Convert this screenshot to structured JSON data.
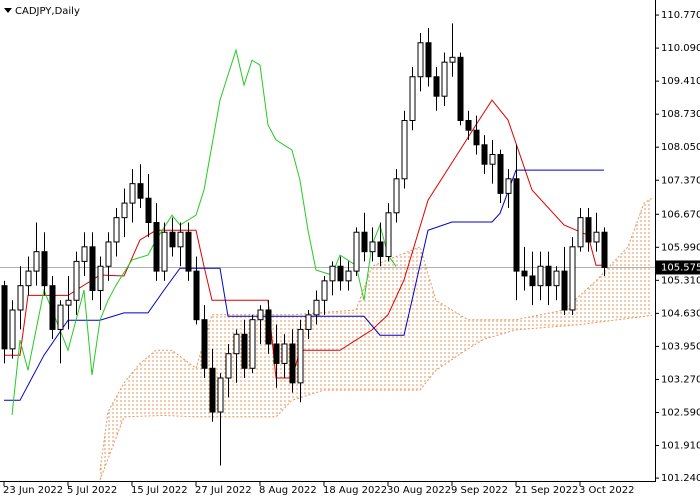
{
  "chart_data": {
    "type": "candlestick",
    "title": "CADJPY,Daily",
    "ylim": [
      101.18,
      111.08
    ],
    "xlim": [
      -0.5,
      81.5
    ],
    "yticks": [
      {
        "value": 110.77,
        "label": "110.770"
      },
      {
        "value": 110.09,
        "label": "110.090"
      },
      {
        "value": 109.41,
        "label": "109.410"
      },
      {
        "value": 108.73,
        "label": "108.730"
      },
      {
        "value": 108.05,
        "label": "108.050"
      },
      {
        "value": 107.37,
        "label": "107.370"
      },
      {
        "value": 106.67,
        "label": "106.670"
      },
      {
        "value": 105.99,
        "label": "105.990"
      },
      {
        "value": 105.31,
        "label": "105.310"
      },
      {
        "value": 104.63,
        "label": "104.630"
      },
      {
        "value": 103.95,
        "label": "103.950"
      },
      {
        "value": 103.27,
        "label": "103.270"
      },
      {
        "value": 102.59,
        "label": "102.590"
      },
      {
        "value": 101.91,
        "label": "101.910"
      },
      {
        "value": 101.24,
        "label": "101.240"
      }
    ],
    "xticks": [
      {
        "value": 0,
        "label": "23 Jun 2022"
      },
      {
        "value": 8,
        "label": "5 Jul 2022"
      },
      {
        "value": 16,
        "label": "15 Jul 2022"
      },
      {
        "value": 24,
        "label": "27 Jul 2022"
      },
      {
        "value": 32,
        "label": "8 Aug 2022"
      },
      {
        "value": 40,
        "label": "18 Aug 2022"
      },
      {
        "value": 48,
        "label": "30 Aug 2022"
      },
      {
        "value": 56,
        "label": "9 Sep 2022"
      },
      {
        "value": 64,
        "label": "21 Sep 2022"
      },
      {
        "value": 72,
        "label": "3 Oct 2022"
      }
    ],
    "last_price": {
      "value": 105.575,
      "label": "105.575"
    },
    "bull_color": "#ffffff",
    "bear_color": "#000000",
    "ohlc": [
      [
        105.2,
        105.3,
        103.6,
        103.9
      ],
      [
        103.9,
        104.9,
        103.7,
        104.7
      ],
      [
        104.7,
        105.6,
        104.3,
        105.2
      ],
      [
        105.2,
        105.8,
        105.0,
        105.5
      ],
      [
        105.5,
        106.5,
        105.2,
        105.9
      ],
      [
        105.9,
        106.3,
        105.0,
        105.2
      ],
      [
        105.2,
        105.4,
        104.1,
        104.3
      ],
      [
        104.3,
        104.9,
        103.6,
        104.8
      ],
      [
        104.8,
        105.4,
        104.3,
        104.9
      ],
      [
        104.9,
        105.9,
        104.6,
        105.7
      ],
      [
        105.7,
        106.3,
        105.4,
        106.0
      ],
      [
        106.0,
        106.3,
        104.9,
        105.1
      ],
      [
        105.1,
        105.8,
        104.7,
        105.6
      ],
      [
        105.6,
        106.3,
        105.3,
        106.1
      ],
      [
        106.1,
        106.8,
        105.8,
        106.6
      ],
      [
        106.6,
        107.2,
        106.2,
        106.9
      ],
      [
        106.9,
        107.6,
        106.5,
        107.3
      ],
      [
        107.3,
        107.7,
        106.8,
        107.0
      ],
      [
        107.0,
        107.5,
        106.2,
        106.5
      ],
      [
        106.5,
        106.9,
        105.3,
        105.5
      ],
      [
        105.5,
        106.5,
        105.3,
        106.3
      ],
      [
        106.3,
        106.6,
        105.8,
        106.0
      ],
      [
        106.0,
        106.5,
        105.6,
        106.3
      ],
      [
        106.3,
        106.5,
        105.3,
        105.5
      ],
      [
        105.5,
        105.8,
        104.4,
        104.5
      ],
      [
        104.5,
        104.8,
        103.3,
        103.5
      ],
      [
        103.5,
        103.9,
        102.4,
        102.6
      ],
      [
        102.6,
        103.4,
        101.5,
        103.3
      ],
      [
        103.3,
        104.0,
        102.9,
        103.8
      ],
      [
        103.8,
        104.3,
        103.2,
        104.2
      ],
      [
        104.2,
        104.5,
        103.3,
        103.5
      ],
      [
        103.5,
        104.6,
        103.4,
        104.5
      ],
      [
        104.5,
        104.8,
        104.0,
        104.7
      ],
      [
        104.7,
        104.9,
        103.8,
        104.0
      ],
      [
        104.0,
        104.4,
        103.1,
        103.6
      ],
      [
        103.6,
        104.2,
        103.3,
        104.0
      ],
      [
        104.0,
        104.3,
        103.0,
        103.2
      ],
      [
        103.2,
        104.5,
        102.8,
        104.3
      ],
      [
        104.3,
        104.7,
        104.1,
        104.6
      ],
      [
        104.6,
        105.1,
        104.4,
        104.9
      ],
      [
        104.9,
        105.4,
        104.6,
        105.3
      ],
      [
        105.3,
        105.7,
        105.0,
        105.6
      ],
      [
        105.6,
        105.8,
        105.1,
        105.3
      ],
      [
        105.3,
        105.7,
        105.1,
        105.5
      ],
      [
        105.5,
        106.4,
        105.4,
        106.3
      ],
      [
        106.3,
        106.7,
        105.7,
        105.9
      ],
      [
        105.9,
        106.4,
        105.7,
        106.1
      ],
      [
        106.1,
        106.5,
        105.6,
        105.8
      ],
      [
        105.8,
        106.9,
        105.7,
        106.7
      ],
      [
        106.7,
        107.6,
        106.5,
        107.4
      ],
      [
        107.4,
        108.8,
        107.2,
        108.6
      ],
      [
        108.6,
        109.7,
        108.4,
        109.5
      ],
      [
        109.5,
        110.4,
        109.2,
        110.2
      ],
      [
        110.2,
        110.5,
        109.3,
        109.5
      ],
      [
        109.5,
        109.7,
        108.8,
        109.1
      ],
      [
        109.1,
        110.0,
        108.9,
        109.8
      ],
      [
        109.8,
        110.6,
        109.5,
        109.9
      ],
      [
        109.9,
        110.0,
        108.5,
        108.6
      ],
      [
        108.6,
        108.8,
        108.2,
        108.4
      ],
      [
        108.4,
        108.7,
        107.9,
        108.1
      ],
      [
        108.1,
        108.3,
        107.5,
        107.7
      ],
      [
        107.7,
        108.2,
        107.3,
        107.9
      ],
      [
        107.9,
        108.0,
        106.9,
        107.1
      ],
      [
        107.1,
        107.6,
        106.8,
        107.4
      ],
      [
        107.4,
        108.1,
        104.9,
        105.5
      ],
      [
        105.5,
        106.0,
        105.1,
        105.4
      ],
      [
        105.4,
        105.9,
        104.8,
        105.2
      ],
      [
        105.2,
        105.9,
        104.9,
        105.6
      ],
      [
        105.6,
        105.9,
        104.8,
        105.2
      ],
      [
        105.2,
        105.6,
        104.9,
        105.5
      ],
      [
        105.5,
        106.0,
        104.6,
        104.7
      ],
      [
        104.7,
        106.2,
        104.6,
        106.0
      ],
      [
        106.0,
        106.8,
        105.9,
        106.6
      ],
      [
        106.6,
        106.8,
        105.9,
        106.1
      ],
      [
        106.1,
        106.7,
        105.9,
        106.3
      ],
      [
        106.3,
        106.4,
        105.4,
        105.575
      ]
    ],
    "lines": [
      {
        "color": "#e00000",
        "x": [
          0,
          2,
          3,
          8,
          12,
          15,
          17,
          19,
          22,
          24,
          25,
          26,
          33,
          34,
          36,
          37,
          42,
          44,
          46,
          48,
          50,
          53,
          57,
          59,
          61,
          63,
          66,
          70,
          73,
          74,
          75
        ],
        "values": [
          103.77,
          103.77,
          105.0,
          105.0,
          105.42,
          105.4,
          106.14,
          106.34,
          106.34,
          106.34,
          105.6,
          104.9,
          104.9,
          103.3,
          103.3,
          103.87,
          103.87,
          104.08,
          104.29,
          104.6,
          105.32,
          106.96,
          107.99,
          108.51,
          109.02,
          108.61,
          107.17,
          106.45,
          106.24,
          105.62,
          105.62
        ]
      },
      {
        "color": "#0000cc",
        "x": [
          0,
          2,
          5,
          8,
          12,
          15,
          18,
          20,
          22,
          27,
          28,
          45,
          47,
          50,
          53,
          56,
          61,
          62,
          64,
          75
        ],
        "values": [
          102.84,
          102.84,
          103.77,
          104.49,
          104.49,
          104.64,
          104.64,
          105.11,
          105.56,
          105.56,
          104.57,
          104.57,
          104.18,
          104.18,
          106.34,
          106.51,
          106.51,
          106.69,
          107.58,
          107.58
        ]
      },
      {
        "color": "#22cc22",
        "x": [
          1,
          2,
          3,
          5,
          7,
          8,
          10,
          11,
          12,
          13,
          14,
          16,
          18,
          19,
          21,
          22,
          24,
          25,
          27,
          29,
          30,
          31,
          32,
          33,
          34,
          36,
          37,
          38,
          39,
          41,
          42,
          44,
          45,
          46,
          47,
          48,
          49
        ],
        "values": [
          102.54,
          104.08,
          103.46,
          105.11,
          104.29,
          103.87,
          105.11,
          103.36,
          104.49,
          104.9,
          105.21,
          105.73,
          105.83,
          106.14,
          106.65,
          106.45,
          106.65,
          107.17,
          109.02,
          110.05,
          109.33,
          109.84,
          109.74,
          108.51,
          108.2,
          107.99,
          107.37,
          106.34,
          105.52,
          105.42,
          105.83,
          105.62,
          104.9,
          106.04,
          106.45,
          105.83,
          105.6
        ]
      }
    ],
    "cloud": {
      "color": "#e8955a",
      "upper": {
        "x": [
          12,
          13,
          15,
          17,
          19,
          21,
          24,
          26,
          36,
          44,
          46,
          52,
          54,
          58,
          64,
          70,
          74,
          78,
          80,
          81
        ],
        "values": [
          101.4,
          102.6,
          103.2,
          103.6,
          103.87,
          103.87,
          103.5,
          104.6,
          104.6,
          104.7,
          105.6,
          106.0,
          104.9,
          104.5,
          104.5,
          104.7,
          105.3,
          106.0,
          106.9,
          107.0
        ]
      },
      "lower": {
        "x": [
          12,
          15,
          20,
          24,
          34,
          36,
          40,
          52,
          54,
          58,
          60,
          64,
          72,
          81
        ],
        "values": [
          101.2,
          102.5,
          102.53,
          102.5,
          102.5,
          102.84,
          103.05,
          103.05,
          103.46,
          103.9,
          104.1,
          104.29,
          104.4,
          104.59
        ]
      }
    }
  }
}
